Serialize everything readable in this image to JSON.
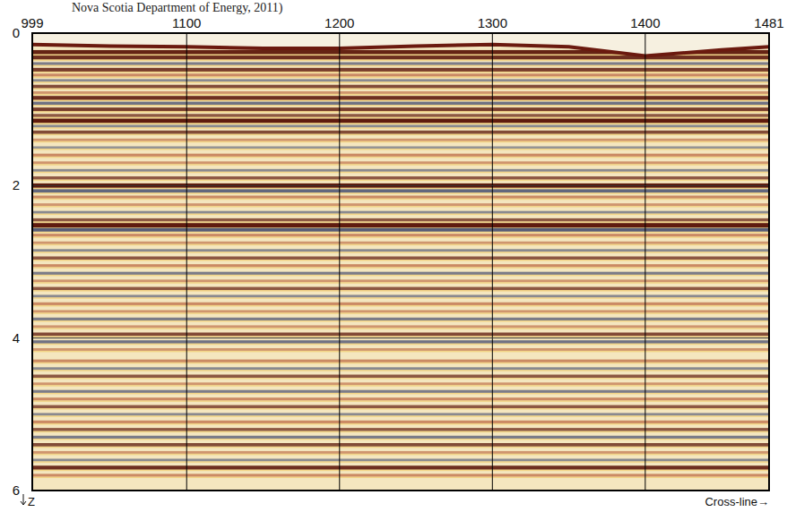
{
  "chart_data": {
    "type": "seismic_section",
    "caption": "Nova Scotia Department of Energy, 2011)",
    "x_label": "Cross-line→",
    "y_label": "Z",
    "xlim": [
      999,
      1481
    ],
    "xticks": [
      999,
      1100,
      1200,
      1300,
      1400,
      1481
    ],
    "ylim": [
      0,
      6
    ],
    "yticks": [
      0,
      2,
      4,
      6
    ],
    "grid": true,
    "seafloor": {
      "x": [
        999,
        1050,
        1100,
        1150,
        1200,
        1250,
        1300,
        1350,
        1400,
        1450,
        1481
      ],
      "z": [
        0.15,
        0.17,
        0.18,
        0.2,
        0.2,
        0.17,
        0.15,
        0.18,
        0.3,
        0.22,
        0.18
      ]
    },
    "reflectors": [
      {
        "z": 0.25,
        "amplitude": 0.9
      },
      {
        "z": 0.32,
        "amplitude": 0.8
      },
      {
        "z": 0.4,
        "amplitude": -0.4
      },
      {
        "z": 0.48,
        "amplitude": 0.7
      },
      {
        "z": 0.55,
        "amplitude": 0.4
      },
      {
        "z": 0.62,
        "amplitude": -0.3
      },
      {
        "z": 0.7,
        "amplitude": 0.6
      },
      {
        "z": 0.78,
        "amplitude": 0.3
      },
      {
        "z": 0.85,
        "amplitude": 0.8
      },
      {
        "z": 0.92,
        "amplitude": -0.5
      },
      {
        "z": 1.0,
        "amplitude": 0.7
      },
      {
        "z": 1.08,
        "amplitude": 0.5
      },
      {
        "z": 1.15,
        "amplitude": 0.95
      },
      {
        "z": 1.22,
        "amplitude": -0.3
      },
      {
        "z": 1.3,
        "amplitude": 0.6
      },
      {
        "z": 1.4,
        "amplitude": 0.3
      },
      {
        "z": 1.5,
        "amplitude": -0.2
      },
      {
        "z": 1.6,
        "amplitude": 0.4
      },
      {
        "z": 1.7,
        "amplitude": 0.3
      },
      {
        "z": 1.8,
        "amplitude": -0.3
      },
      {
        "z": 1.9,
        "amplitude": 0.5
      },
      {
        "z": 2.0,
        "amplitude": 0.95
      },
      {
        "z": 2.07,
        "amplitude": -0.6
      },
      {
        "z": 2.15,
        "amplitude": 0.4
      },
      {
        "z": 2.25,
        "amplitude": 0.3
      },
      {
        "z": 2.35,
        "amplitude": -0.3
      },
      {
        "z": 2.45,
        "amplitude": 0.5
      },
      {
        "z": 2.52,
        "amplitude": 0.95
      },
      {
        "z": 2.58,
        "amplitude": -0.7
      },
      {
        "z": 2.65,
        "amplitude": 0.4
      },
      {
        "z": 2.75,
        "amplitude": 0.3
      },
      {
        "z": 2.85,
        "amplitude": -0.3
      },
      {
        "z": 2.95,
        "amplitude": 0.5
      },
      {
        "z": 3.05,
        "amplitude": 0.4
      },
      {
        "z": 3.15,
        "amplitude": -0.4
      },
      {
        "z": 3.25,
        "amplitude": 0.3
      },
      {
        "z": 3.35,
        "amplitude": 0.5
      },
      {
        "z": 3.45,
        "amplitude": -0.3
      },
      {
        "z": 3.55,
        "amplitude": 0.4
      },
      {
        "z": 3.65,
        "amplitude": 0.3
      },
      {
        "z": 3.75,
        "amplitude": -0.4
      },
      {
        "z": 3.85,
        "amplitude": 0.3
      },
      {
        "z": 3.95,
        "amplitude": 0.6
      },
      {
        "z": 4.05,
        "amplitude": -0.5
      },
      {
        "z": 4.15,
        "amplitude": 0.3
      },
      {
        "z": 4.3,
        "amplitude": 0.4
      },
      {
        "z": 4.4,
        "amplitude": -0.3
      },
      {
        "z": 4.5,
        "amplitude": 0.5
      },
      {
        "z": 4.6,
        "amplitude": 0.3
      },
      {
        "z": 4.7,
        "amplitude": -0.4
      },
      {
        "z": 4.8,
        "amplitude": 0.4
      },
      {
        "z": 4.9,
        "amplitude": 0.5
      },
      {
        "z": 5.0,
        "amplitude": -0.3
      },
      {
        "z": 5.1,
        "amplitude": 0.4
      },
      {
        "z": 5.2,
        "amplitude": 0.5
      },
      {
        "z": 5.3,
        "amplitude": -0.4
      },
      {
        "z": 5.4,
        "amplitude": 0.6
      },
      {
        "z": 5.5,
        "amplitude": 0.3
      },
      {
        "z": 5.6,
        "amplitude": -0.3
      },
      {
        "z": 5.7,
        "amplitude": 0.8
      },
      {
        "z": 5.8,
        "amplitude": 0.4
      }
    ]
  }
}
